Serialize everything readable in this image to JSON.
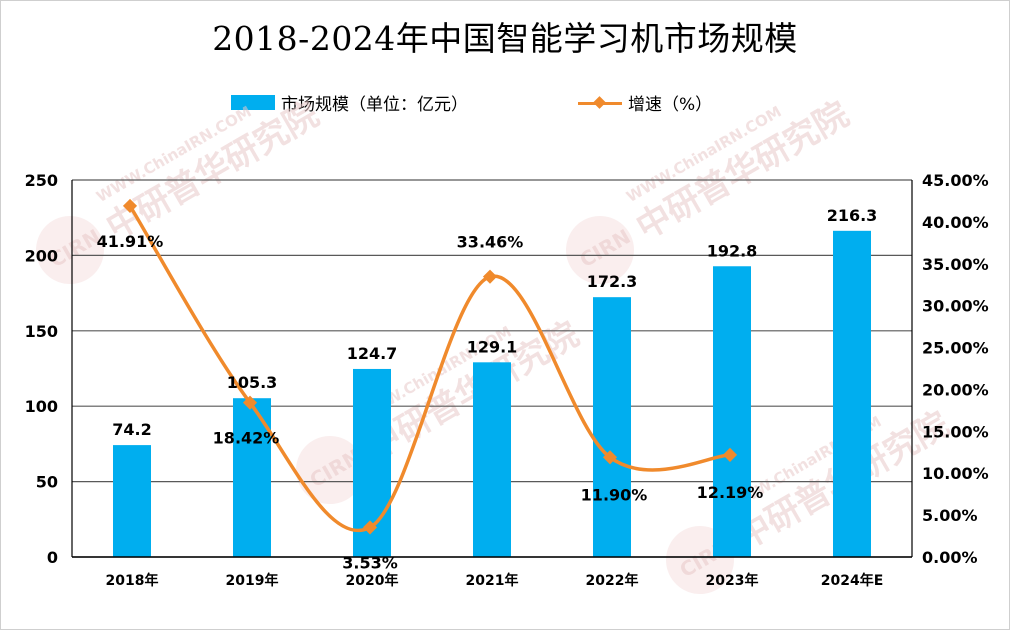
{
  "chart_data": {
    "type": "bar+line",
    "title": "2018-2024年中国智能学习机市场规模",
    "categories": [
      "2018年",
      "2019年",
      "2020年",
      "2021年",
      "2022年",
      "2023年",
      "2024年E"
    ],
    "series": [
      {
        "name": "市场规模（单位：亿元）",
        "type": "bar",
        "axis": "left",
        "values": [
          74.2,
          105.3,
          124.7,
          129.1,
          172.3,
          192.8,
          216.3
        ],
        "labels": [
          "74.2",
          "105.3",
          "124.7",
          "129.1",
          "172.3",
          "192.8",
          "216.3"
        ]
      },
      {
        "name": "增速（%）",
        "type": "line",
        "axis": "right",
        "values": [
          41.91,
          18.42,
          3.53,
          33.46,
          11.9,
          12.19,
          null
        ],
        "labels": [
          "41.91%",
          "18.42%",
          "3.53%",
          "33.46%",
          "11.90%",
          "12.19%",
          ""
        ]
      }
    ],
    "y_left": {
      "range": [
        0,
        250
      ],
      "ticks": [
        0,
        50,
        100,
        150,
        200,
        250
      ],
      "tick_labels": [
        "0",
        "50",
        "100",
        "150",
        "200",
        "250"
      ]
    },
    "y_right": {
      "range": [
        0,
        45
      ],
      "ticks": [
        0,
        5,
        10,
        15,
        20,
        25,
        30,
        35,
        40,
        45
      ],
      "tick_labels": [
        "0.00%",
        "5.00%",
        "10.00%",
        "15.00%",
        "20.00%",
        "25.00%",
        "30.00%",
        "35.00%",
        "40.00%",
        "45.00%"
      ]
    },
    "gridlines": true,
    "legend_position": "top-center",
    "colors": {
      "bar": "#00aeef",
      "line": "#f08a2c",
      "grid": "#595959"
    },
    "watermark_text": [
      "中研普华研究院",
      "WWW.ChinaIRN.COM",
      "CIRN"
    ]
  }
}
